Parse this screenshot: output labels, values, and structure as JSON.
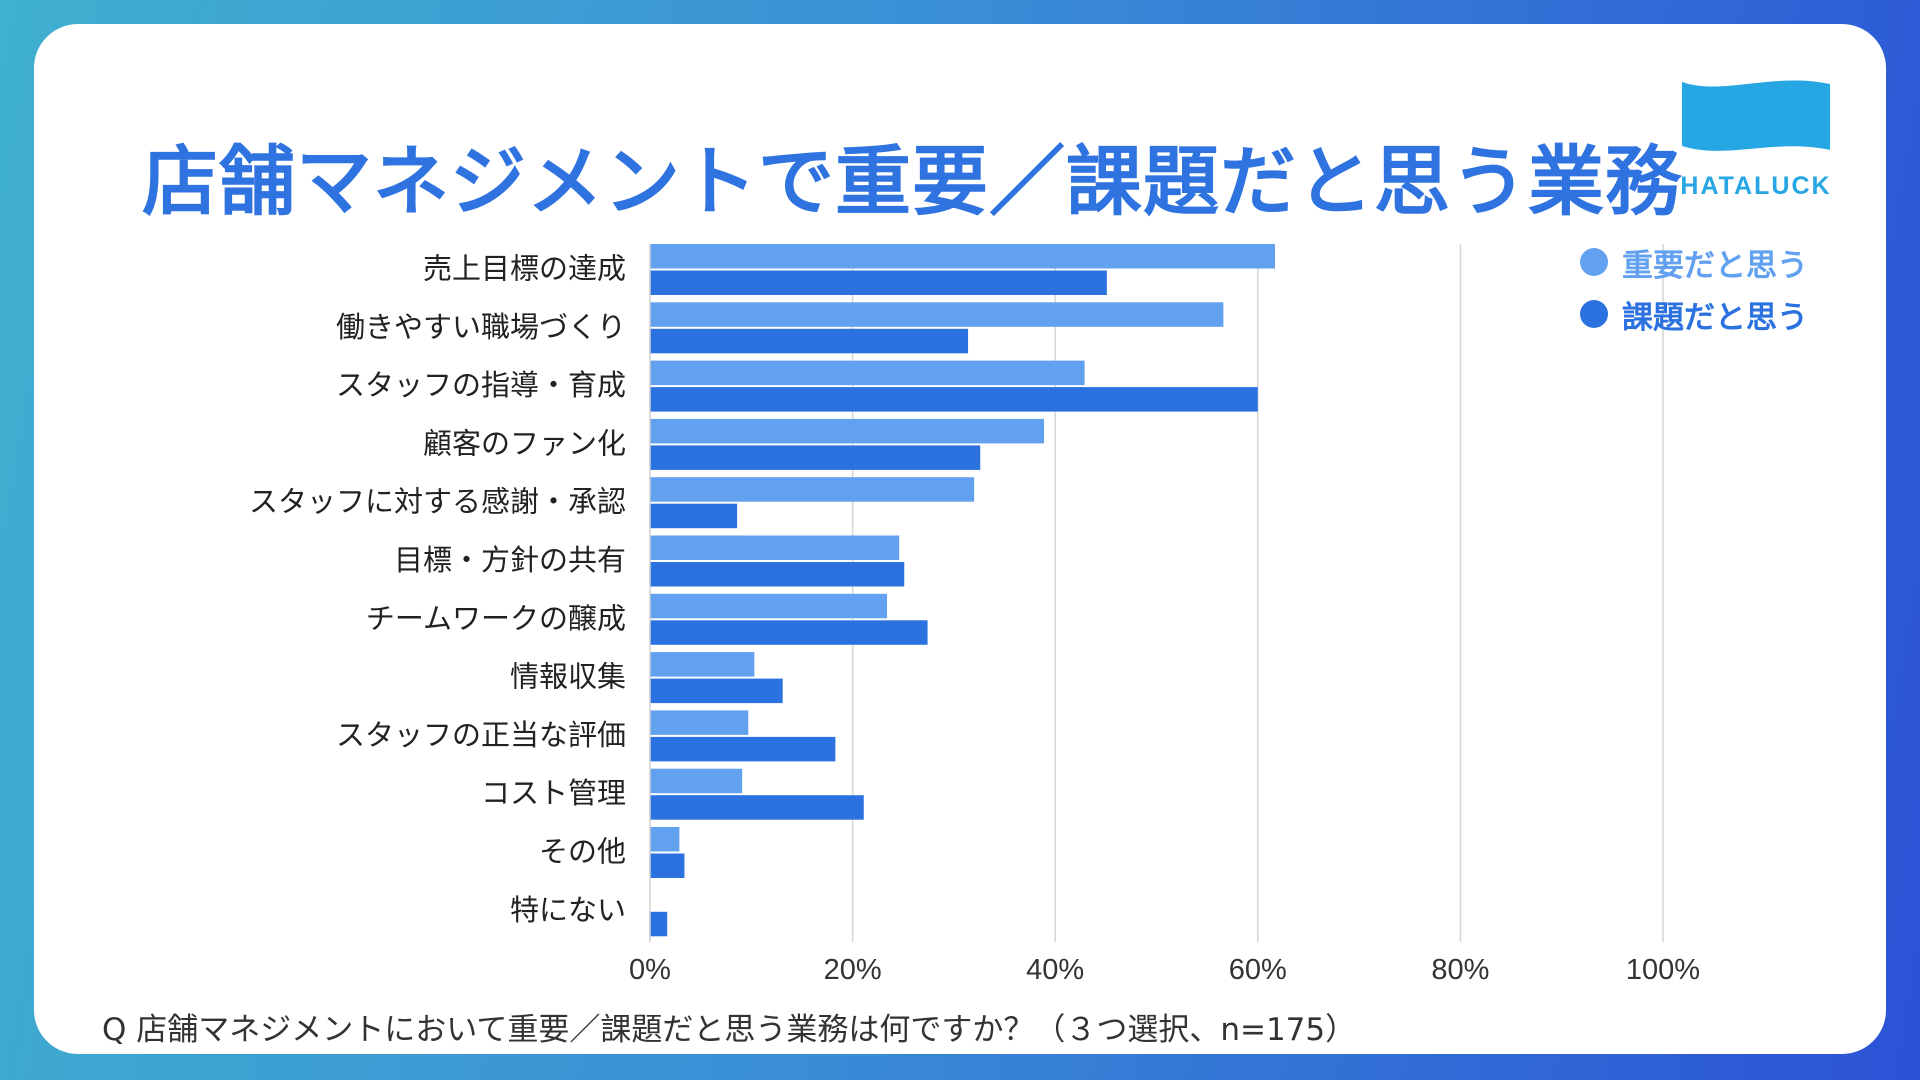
{
  "title": "店舗マネジメントで重要／課題だと思う業務",
  "logo": {
    "text": "HATALUCK",
    "color": "#26a6e3"
  },
  "legend": [
    {
      "label": "重要だと思う",
      "color": "#62a0f0",
      "icon": "circle-dot-icon"
    },
    {
      "label": "課題だと思う",
      "color": "#2b72e0",
      "icon": "circle-dot-icon"
    }
  ],
  "chart_data": {
    "type": "bar",
    "orientation": "horizontal",
    "categories": [
      "売上目標の達成",
      "働きやすい職場づくり",
      "スタッフの指導・育成",
      "顧客のファン化",
      "スタッフに対する感謝・承認",
      "目標・方針の共有",
      "チームワークの醸成",
      "情報収集",
      "スタッフの正当な評価",
      "コスト管理",
      "その他",
      "特にない"
    ],
    "series": [
      {
        "name": "重要だと思う",
        "color": "#62a0f0",
        "values": [
          61.7,
          56.6,
          42.9,
          38.9,
          32.0,
          24.6,
          23.4,
          10.3,
          9.7,
          9.1,
          2.9,
          0
        ]
      },
      {
        "name": "課題だと思う",
        "color": "#2b72e0",
        "values": [
          45.1,
          31.4,
          60.0,
          32.6,
          8.6,
          25.1,
          27.4,
          13.1,
          18.3,
          21.1,
          3.4,
          1.7
        ]
      }
    ],
    "xlim": [
      0,
      100
    ],
    "xticks": [
      "0%",
      "20%",
      "40%",
      "60%",
      "80%",
      "100%"
    ],
    "xtick_values": [
      0,
      20,
      40,
      60,
      80,
      100
    ],
    "grid": true,
    "legend_position": "top-right"
  },
  "footnote": "Q 店舗マネジメントにおいて重要／課題だと思う業務は何ですか？（３つ選択、n=175）"
}
